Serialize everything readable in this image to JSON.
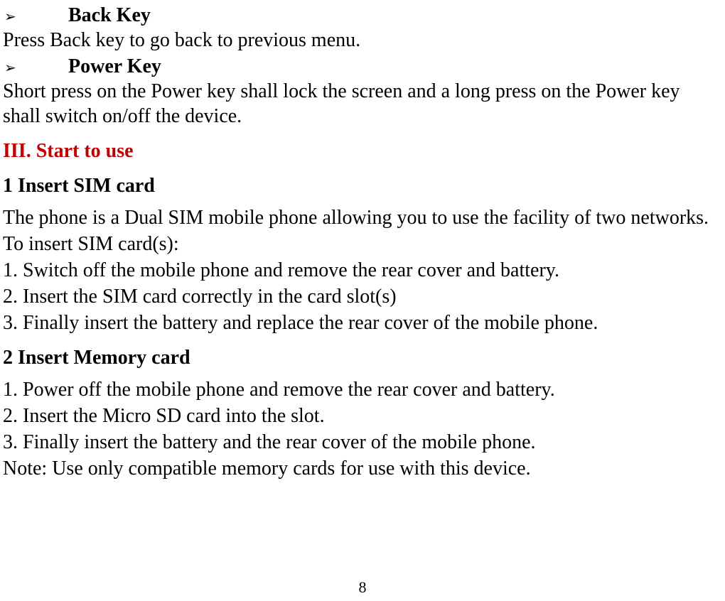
{
  "colors": {
    "text": "#000000",
    "heading_red": "#c00000",
    "background": "#ffffff"
  },
  "typography": {
    "base_fontsize": 28,
    "page_number_fontsize": 22,
    "font_family": "Times New Roman"
  },
  "bullets": [
    {
      "marker": "➢",
      "label": "Back Key"
    },
    {
      "marker": "➢",
      "label": "Power Key"
    }
  ],
  "back_key_desc": "Press Back key to go back to previous menu.",
  "power_key_desc": "Short press on the Power key shall lock the screen and a long press on the Power key shall switch on/off the device.",
  "section3": {
    "title": "III. Start to use",
    "sub1": {
      "title": "1 Insert SIM card",
      "intro": "The phone is a Dual SIM mobile phone allowing you to use the facility of two networks.",
      "lead": "To insert SIM card(s):",
      "steps": [
        "1. Switch off the mobile phone and remove the rear cover and battery.",
        "2. Insert the SIM card correctly in the card slot(s)",
        "3. Finally insert the battery and replace the rear cover of the mobile phone."
      ]
    },
    "sub2": {
      "title": "2 Insert Memory card",
      "steps": [
        "1. Power off the mobile phone and remove the rear cover and battery.",
        "2. Insert the Micro SD card into the slot.",
        "3. Finally insert the battery and the rear cover of the mobile phone."
      ],
      "note": "Note: Use only compatible memory cards for use with this device."
    }
  },
  "page_number": "8"
}
